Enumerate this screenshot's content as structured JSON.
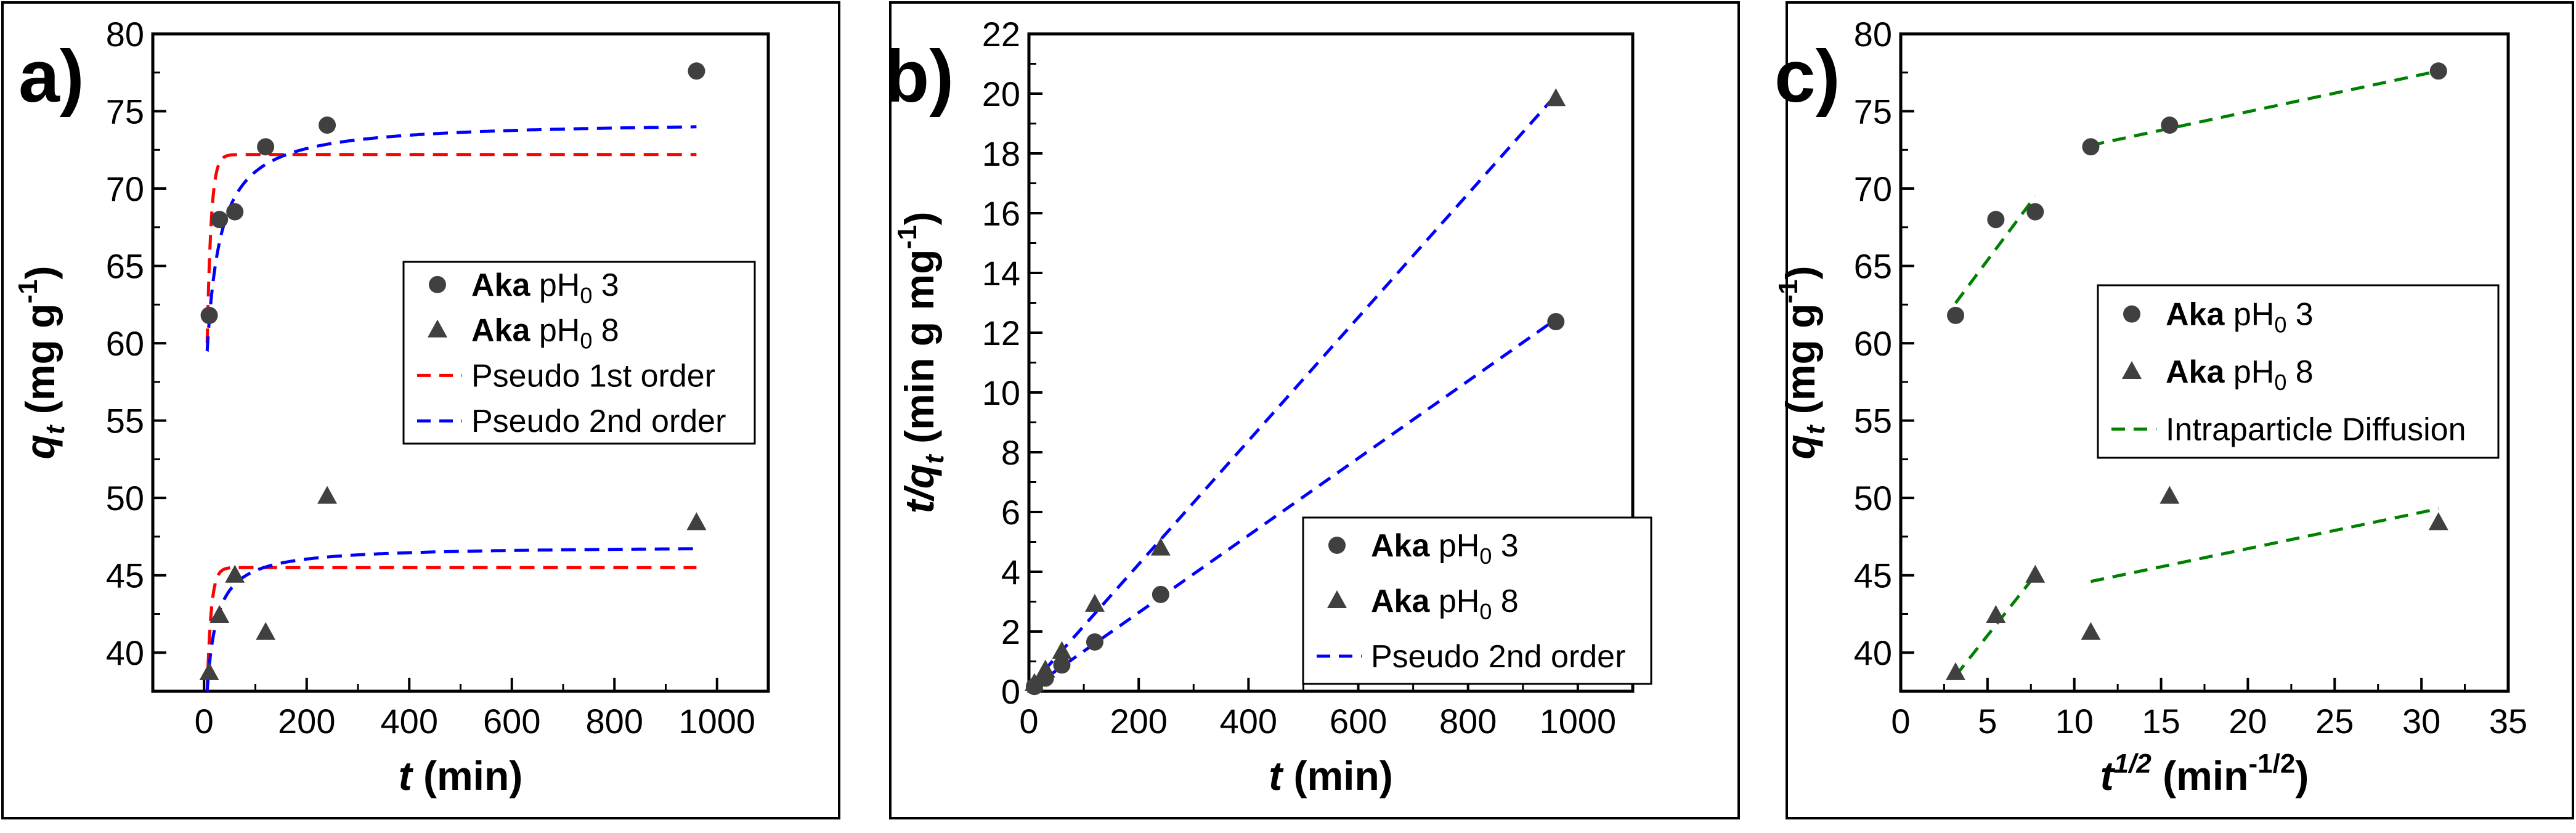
{
  "chart_data": [
    {
      "panel": "a)",
      "type": "scatter",
      "xlabel": "t",
      "xlabel_unit": " (min)",
      "ylabel": "q",
      "ylabel_sub": "t",
      "ylabel_unit": " (mg g",
      "ylabel_sup": "-1",
      "ylabel_close": ")",
      "xlim": [
        -100,
        1100
      ],
      "ylim": [
        37.5,
        80
      ],
      "xticks": [
        0,
        200,
        400,
        600,
        800,
        1000
      ],
      "yticks": [
        40,
        45,
        50,
        55,
        60,
        65,
        70,
        75,
        80
      ],
      "xtick_labels": [
        "0",
        "200",
        "400",
        "600",
        "800",
        "1000"
      ],
      "ytick_labels": [
        "40",
        "45",
        "50",
        "55",
        "60",
        "65",
        "70",
        "75",
        "80"
      ],
      "legend_position": "center-right",
      "series": [
        {
          "name": "Aka pH0 3",
          "name_bold": "Aka",
          "name_rest": " pH",
          "name_sub": "0",
          "name_tail": " 3",
          "marker": "circle",
          "color": "#404040",
          "x": [
            10,
            30,
            60,
            120,
            240,
            960
          ],
          "y": [
            61.8,
            68.0,
            68.5,
            72.7,
            74.1,
            77.6
          ]
        },
        {
          "name": "Aka pH0 8",
          "name_bold": "Aka",
          "name_rest": " pH",
          "name_sub": "0",
          "name_tail": " 8",
          "marker": "triangle",
          "color": "#404040",
          "x": [
            10,
            30,
            60,
            120,
            240,
            960
          ],
          "y": [
            38.7,
            42.4,
            45.0,
            41.3,
            50.1,
            48.4
          ]
        }
      ],
      "fits": [
        {
          "name": "Pseudo 1st order",
          "model": "pfo",
          "color": "#ff0000",
          "curves": [
            {
              "qe": 72.2,
              "k": 0.13,
              "y0": 60.0,
              "t0": 6,
              "t1": 960
            },
            {
              "qe": 45.5,
              "k": 0.13,
              "y0": 37.5,
              "t0": 6,
              "t1": 960
            }
          ]
        },
        {
          "name": "Pseudo 2nd order",
          "model": "pso",
          "color": "#0000ff",
          "curves": [
            {
              "qe": 74.4,
              "k": 0.0025,
              "y0": 59.5,
              "t0": 6,
              "t1": 960
            },
            {
              "qe": 46.9,
              "k": 0.0055,
              "y0": 37.5,
              "t0": 6,
              "t1": 960
            }
          ]
        }
      ]
    },
    {
      "panel": "b)",
      "type": "scatter",
      "xlabel": "t",
      "xlabel_unit": " (min)",
      "ylabel": "t/q",
      "ylabel_sub": "t",
      "ylabel_unit": " (min g mg",
      "ylabel_sup": "-1",
      "ylabel_close": ")",
      "xlim": [
        0,
        1100
      ],
      "ylim": [
        0,
        22
      ],
      "xticks": [
        0,
        200,
        400,
        600,
        800,
        1000
      ],
      "yticks": [
        0,
        2,
        4,
        6,
        8,
        10,
        12,
        14,
        16,
        18,
        20,
        22
      ],
      "xtick_labels": [
        "0",
        "200",
        "400",
        "600",
        "800",
        "1000"
      ],
      "ytick_labels": [
        "0",
        "2",
        "4",
        "6",
        "8",
        "10",
        "12",
        "14",
        "16",
        "18",
        "20",
        "22"
      ],
      "legend_position": "bottom-right",
      "series": [
        {
          "name": "Aka pH0 3",
          "name_bold": "Aka",
          "name_rest": " pH",
          "name_sub": "0",
          "name_tail": " 3",
          "marker": "circle",
          "color": "#404040",
          "x": [
            10,
            30,
            60,
            120,
            240,
            960
          ],
          "y": [
            0.16,
            0.44,
            0.88,
            1.65,
            3.24,
            12.37
          ]
        },
        {
          "name": "Aka pH0 8",
          "name_bold": "Aka",
          "name_rest": " pH",
          "name_sub": "0",
          "name_tail": " 8",
          "marker": "triangle",
          "color": "#404040",
          "x": [
            10,
            30,
            60,
            120,
            240,
            960
          ],
          "y": [
            0.26,
            0.71,
            1.33,
            2.91,
            4.79,
            19.83
          ]
        }
      ],
      "fits": [
        {
          "name": "Pseudo 2nd order",
          "model": "line",
          "color": "#0000ff",
          "lines": [
            {
              "x": [
                0,
                960
              ],
              "y": [
                0.05,
                12.45
              ]
            },
            {
              "x": [
                0,
                960
              ],
              "y": [
                0.12,
                19.95
              ]
            }
          ]
        }
      ]
    },
    {
      "panel": "c)",
      "type": "scatter",
      "xlabel": "t",
      "xlabel_sup": "1/2",
      "xlabel_unit": " (min",
      "xlabel_unit_sup": "-1/2",
      "xlabel_close": ")",
      "ylabel": "q",
      "ylabel_sub": "t",
      "ylabel_unit": " (mg g",
      "ylabel_sup": "-1",
      "ylabel_close": ")",
      "xlim": [
        0,
        35
      ],
      "ylim": [
        37.5,
        80
      ],
      "xticks": [
        0,
        5,
        10,
        15,
        20,
        25,
        30,
        35
      ],
      "yticks": [
        40,
        45,
        50,
        55,
        60,
        65,
        70,
        75,
        80
      ],
      "xtick_labels": [
        "0",
        "5",
        "10",
        "15",
        "20",
        "25",
        "30",
        "35"
      ],
      "ytick_labels": [
        "40",
        "45",
        "50",
        "55",
        "60",
        "65",
        "70",
        "75",
        "80"
      ],
      "legend_position": "upper-right",
      "series": [
        {
          "name": "Aka pH0 3",
          "name_bold": "Aka",
          "name_rest": " pH",
          "name_sub": "0",
          "name_tail": " 3",
          "marker": "circle",
          "color": "#404040",
          "x": [
            3.16,
            5.48,
            7.75,
            10.95,
            15.49,
            30.98
          ],
          "y": [
            61.8,
            68.0,
            68.5,
            72.7,
            74.1,
            77.6
          ]
        },
        {
          "name": "Aka pH0 8",
          "name_bold": "Aka",
          "name_rest": " pH",
          "name_sub": "0",
          "name_tail": " 8",
          "marker": "triangle",
          "color": "#404040",
          "x": [
            3.16,
            5.48,
            7.75,
            10.95,
            15.49,
            30.98
          ],
          "y": [
            38.7,
            42.4,
            45.0,
            41.3,
            50.1,
            48.4
          ]
        }
      ],
      "fits": [
        {
          "name": "Intraparticle Diffusion",
          "model": "line",
          "color": "#008000",
          "lines": [
            {
              "x": [
                3.16,
                7.75
              ],
              "y": [
                62.6,
                69.5
              ]
            },
            {
              "x": [
                10.95,
                30.98
              ],
              "y": [
                72.8,
                77.6
              ]
            },
            {
              "x": [
                3.16,
                7.75
              ],
              "y": [
                38.5,
                45.0
              ]
            },
            {
              "x": [
                10.95,
                30.98
              ],
              "y": [
                44.6,
                49.3
              ]
            }
          ]
        }
      ]
    }
  ]
}
